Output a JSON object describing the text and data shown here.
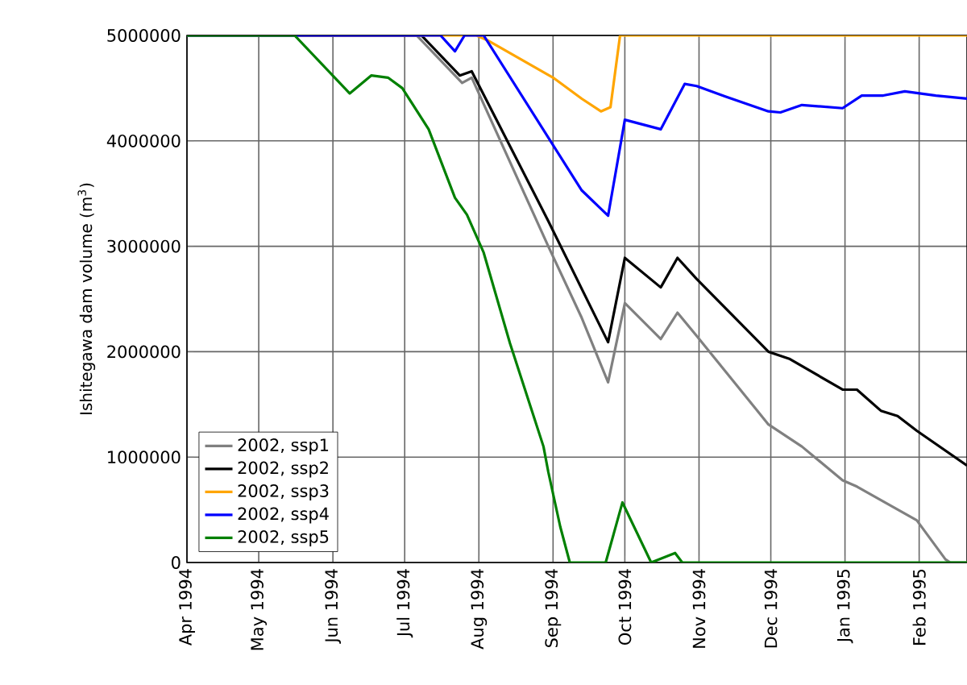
{
  "chart_data": {
    "type": "line",
    "ylabel": "Ishitegawa dam volume (m$^{3}$)",
    "xlim": [
      "1994-04-01",
      "1995-02-21"
    ],
    "ylim": [
      0,
      5000000
    ],
    "xticks": [
      {
        "value": "1994-04-01",
        "label": "Apr 1994"
      },
      {
        "value": "1994-05-01",
        "label": "May 1994"
      },
      {
        "value": "1994-06-01",
        "label": "Jun 1994"
      },
      {
        "value": "1994-07-01",
        "label": "Jul 1994"
      },
      {
        "value": "1994-08-01",
        "label": "Aug 1994"
      },
      {
        "value": "1994-09-01",
        "label": "Sep 1994"
      },
      {
        "value": "1994-10-01",
        "label": "Oct 1994"
      },
      {
        "value": "1994-11-01",
        "label": "Nov 1994"
      },
      {
        "value": "1994-12-01",
        "label": "Dec 1994"
      },
      {
        "value": "1995-01-01",
        "label": "Jan 1995"
      },
      {
        "value": "1995-02-01",
        "label": "Feb 1995"
      }
    ],
    "yticks": [
      0,
      1000000,
      2000000,
      3000000,
      4000000,
      5000000
    ],
    "grid": true,
    "legend": "bottom left",
    "marker": "none",
    "line_style": "solid",
    "series": [
      {
        "name": "2002, ssp1",
        "color": "#808080",
        "x": [
          "1994-04-01",
          "1994-07-06",
          "1994-07-25",
          "1994-07-29",
          "1994-08-30",
          "1994-09-13",
          "1994-09-24",
          "1994-10-01",
          "1994-10-16",
          "1994-10-23",
          "1994-10-31",
          "1994-11-30",
          "1994-12-14",
          "1994-12-31",
          "1995-01-06",
          "1995-01-31",
          "1995-02-12",
          "1995-02-14",
          "1995-02-21"
        ],
        "values": [
          5000000,
          5000000,
          4550000,
          4600000,
          3000000,
          2320000,
          1710000,
          2460000,
          2120000,
          2370000,
          2150000,
          1310000,
          1100000,
          780000,
          720000,
          400000,
          30000,
          0,
          0
        ]
      },
      {
        "name": "2002, ssp2",
        "color": "#000000",
        "x": [
          "1994-04-01",
          "1994-07-08",
          "1994-07-24",
          "1994-07-29",
          "1994-08-30",
          "1994-09-24",
          "1994-10-01",
          "1994-10-16",
          "1994-10-23",
          "1994-10-31",
          "1994-11-30",
          "1994-12-09",
          "1994-12-31",
          "1995-01-06",
          "1995-01-16",
          "1995-01-23",
          "1995-01-31",
          "1995-02-21"
        ],
        "values": [
          5000000,
          5000000,
          4620000,
          4660000,
          3240000,
          2090000,
          2890000,
          2610000,
          2890000,
          2690000,
          2000000,
          1930000,
          1640000,
          1640000,
          1440000,
          1390000,
          1250000,
          920000
        ]
      },
      {
        "name": "2002, ssp3",
        "color": "#ffa500",
        "x": [
          "1994-04-01",
          "1994-07-31",
          "1994-08-05",
          "1994-09-01",
          "1994-09-13",
          "1994-09-21",
          "1994-09-25",
          "1994-09-29",
          "1995-02-21"
        ],
        "values": [
          5000000,
          5000000,
          4950000,
          4600000,
          4400000,
          4280000,
          4320000,
          5000000,
          5000000
        ]
      },
      {
        "name": "2002, ssp4",
        "color": "#0000ff",
        "x": [
          "1994-04-01",
          "1994-07-16",
          "1994-07-22",
          "1994-07-26",
          "1994-08-03",
          "1994-09-13",
          "1994-09-24",
          "1994-10-01",
          "1994-10-16",
          "1994-10-26",
          "1994-10-31",
          "1994-11-12",
          "1994-11-30",
          "1994-12-05",
          "1994-12-14",
          "1994-12-31",
          "1995-01-08",
          "1995-01-17",
          "1995-01-26",
          "1995-02-08",
          "1995-02-21"
        ],
        "values": [
          5000000,
          5000000,
          4850000,
          5000000,
          5000000,
          3530000,
          3290000,
          4200000,
          4110000,
          4540000,
          4520000,
          4420000,
          4280000,
          4270000,
          4340000,
          4310000,
          4430000,
          4430000,
          4470000,
          4430000,
          4400000
        ]
      },
      {
        "name": "2002, ssp5",
        "color": "#008000",
        "x": [
          "1994-04-01",
          "1994-05-16",
          "1994-06-08",
          "1994-06-17",
          "1994-06-24",
          "1994-06-30",
          "1994-07-11",
          "1994-07-22",
          "1994-07-27",
          "1994-08-03",
          "1994-08-14",
          "1994-08-28",
          "1994-08-30",
          "1994-09-04",
          "1994-09-08",
          "1994-09-23",
          "1994-09-30",
          "1994-10-12",
          "1994-10-22",
          "1994-10-25",
          "1995-02-21"
        ],
        "values": [
          5000000,
          5000000,
          4450000,
          4620000,
          4600000,
          4500000,
          4110000,
          3460000,
          3300000,
          2940000,
          2080000,
          1100000,
          860000,
          340000,
          0,
          0,
          570000,
          0,
          90000,
          0,
          0
        ]
      }
    ]
  }
}
